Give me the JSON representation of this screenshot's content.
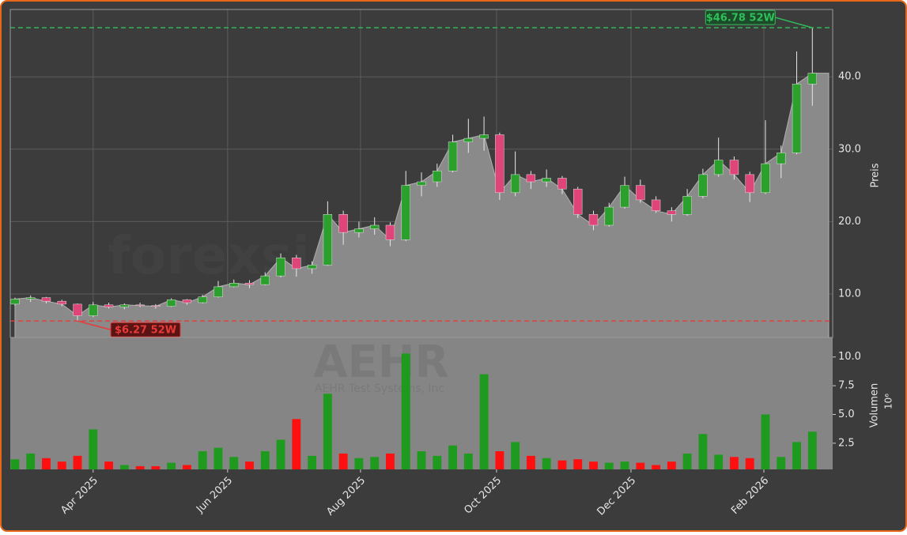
{
  "chart_data": {
    "type": "candlestick",
    "watermark": "forexsignale.trade",
    "ticker": "AEHR",
    "company": "AEHR Test Systems, Inc",
    "ylabel": "Preis",
    "volume_label": "Volumen",
    "volume_offset": "10⁶",
    "x": [
      0,
      1,
      2,
      3,
      4,
      5,
      6,
      7,
      8,
      9,
      10,
      11,
      12,
      13,
      14,
      15,
      16,
      17,
      18,
      19,
      20,
      21,
      22,
      23,
      24,
      25,
      26,
      27,
      28,
      29,
      30,
      31,
      32,
      33,
      34,
      35,
      36,
      37,
      38,
      39,
      40,
      41,
      42,
      43,
      44,
      45,
      46,
      47,
      48,
      49,
      50,
      51
    ],
    "open": [
      8.6,
      9.3,
      9.5,
      9.0,
      8.6,
      7.0,
      8.5,
      8.2,
      8.5,
      8.4,
      8.3,
      9.2,
      8.8,
      9.6,
      11.0,
      11.5,
      11.3,
      12.5,
      15.0,
      13.5,
      14.0,
      21.0,
      18.5,
      19.0,
      19.5,
      17.5,
      25.0,
      25.5,
      27.0,
      31.0,
      31.5,
      32.0,
      24.0,
      26.5,
      25.5,
      26.0,
      24.5,
      21.0,
      19.5,
      22.0,
      25.0,
      23.0,
      21.5,
      21.0,
      23.5,
      26.5,
      28.5,
      26.5,
      24.0,
      28.0,
      29.5,
      39.0
    ],
    "high": [
      9.5,
      9.8,
      9.6,
      9.2,
      8.7,
      8.9,
      8.8,
      8.7,
      8.8,
      8.6,
      9.4,
      9.3,
      9.9,
      11.8,
      12.0,
      11.9,
      13.0,
      15.6,
      15.4,
      14.5,
      22.8,
      21.5,
      20.0,
      20.6,
      19.9,
      27.0,
      26.8,
      28.0,
      32.0,
      34.2,
      34.5,
      32.3,
      29.7,
      27.0,
      27.2,
      26.3,
      24.8,
      21.5,
      22.6,
      26.2,
      25.8,
      23.5,
      22.0,
      24.5,
      27.3,
      31.6,
      29.0,
      26.9,
      34.0,
      30.5,
      43.5,
      46.78
    ],
    "low": [
      8.4,
      8.9,
      8.7,
      8.3,
      6.27,
      6.8,
      8.0,
      7.9,
      8.2,
      8.0,
      8.2,
      8.5,
      8.7,
      9.5,
      10.9,
      10.8,
      11.2,
      12.3,
      12.4,
      12.8,
      13.9,
      16.8,
      17.8,
      18.2,
      16.6,
      17.3,
      23.5,
      24.8,
      26.8,
      29.5,
      29.8,
      23.0,
      23.5,
      24.5,
      24.8,
      23.8,
      20.5,
      18.8,
      19.3,
      21.8,
      22.6,
      21.2,
      20.0,
      20.8,
      23.2,
      26.2,
      25.8,
      22.7,
      23.8,
      26.0,
      29.3,
      36.0
    ],
    "close": [
      9.3,
      9.5,
      9.0,
      8.6,
      7.0,
      8.5,
      8.2,
      8.5,
      8.4,
      8.3,
      9.2,
      8.8,
      9.6,
      11.0,
      11.5,
      11.3,
      12.5,
      15.0,
      13.5,
      14.0,
      21.0,
      18.5,
      19.0,
      19.5,
      17.5,
      25.0,
      25.5,
      27.0,
      31.0,
      31.5,
      32.0,
      24.0,
      26.5,
      25.5,
      26.0,
      24.5,
      21.0,
      19.5,
      22.0,
      25.0,
      23.0,
      21.5,
      21.0,
      23.5,
      26.5,
      28.5,
      26.5,
      24.0,
      28.0,
      29.5,
      39.0,
      40.5
    ],
    "volume": [
      1.1,
      1.6,
      1.2,
      0.9,
      1.4,
      3.7,
      0.9,
      0.6,
      0.5,
      0.5,
      0.8,
      0.6,
      1.8,
      2.1,
      1.3,
      0.9,
      1.8,
      2.8,
      4.6,
      1.4,
      6.8,
      1.6,
      1.2,
      1.3,
      1.6,
      10.3,
      1.8,
      1.4,
      2.3,
      1.6,
      8.5,
      1.8,
      2.6,
      1.4,
      1.2,
      1.0,
      1.1,
      0.9,
      0.8,
      0.9,
      0.8,
      0.6,
      0.9,
      1.6,
      3.3,
      1.5,
      1.3,
      1.2,
      5.0,
      1.3,
      2.6,
      3.5
    ],
    "xlim": [
      -0.3,
      52.3
    ],
    "xticks": [
      {
        "value": 5.0,
        "label": "Apr 2025"
      },
      {
        "value": 13.6,
        "label": "Jun 2025"
      },
      {
        "value": 22.1,
        "label": "Aug 2025"
      },
      {
        "value": 30.8,
        "label": "Oct 2025"
      },
      {
        "value": 39.4,
        "label": "Dec 2025"
      },
      {
        "value": 47.9,
        "label": "Feb 2026"
      }
    ],
    "ylim": [
      4.0,
      49.3
    ],
    "yticks": [
      {
        "value": 10,
        "label": "10.0"
      },
      {
        "value": 20,
        "label": "20.0"
      },
      {
        "value": 30,
        "label": "30.0"
      },
      {
        "value": 40,
        "label": "40.0"
      }
    ],
    "volume_ylim": [
      0.22,
      11.7
    ],
    "volume_yticks": [
      2.5,
      {
        "value": 5,
        "label": "5.0"
      },
      7.5,
      {
        "value": 10,
        "label": "10.0"
      }
    ],
    "grid": true,
    "area_color": "#8a8a8a",
    "candle_up_color": "#2ca02c",
    "candle_down_color": "#e0457a",
    "volume_up_color": "#1e9a1e",
    "volume_down_color": "#ff1010",
    "annotations": [
      {
        "text": "$46.78 52W",
        "value": 46.78,
        "color": "#2fbf5a"
      },
      {
        "text": "$6.27 52W",
        "value": 6.27,
        "color": "#e83a3a"
      }
    ]
  }
}
